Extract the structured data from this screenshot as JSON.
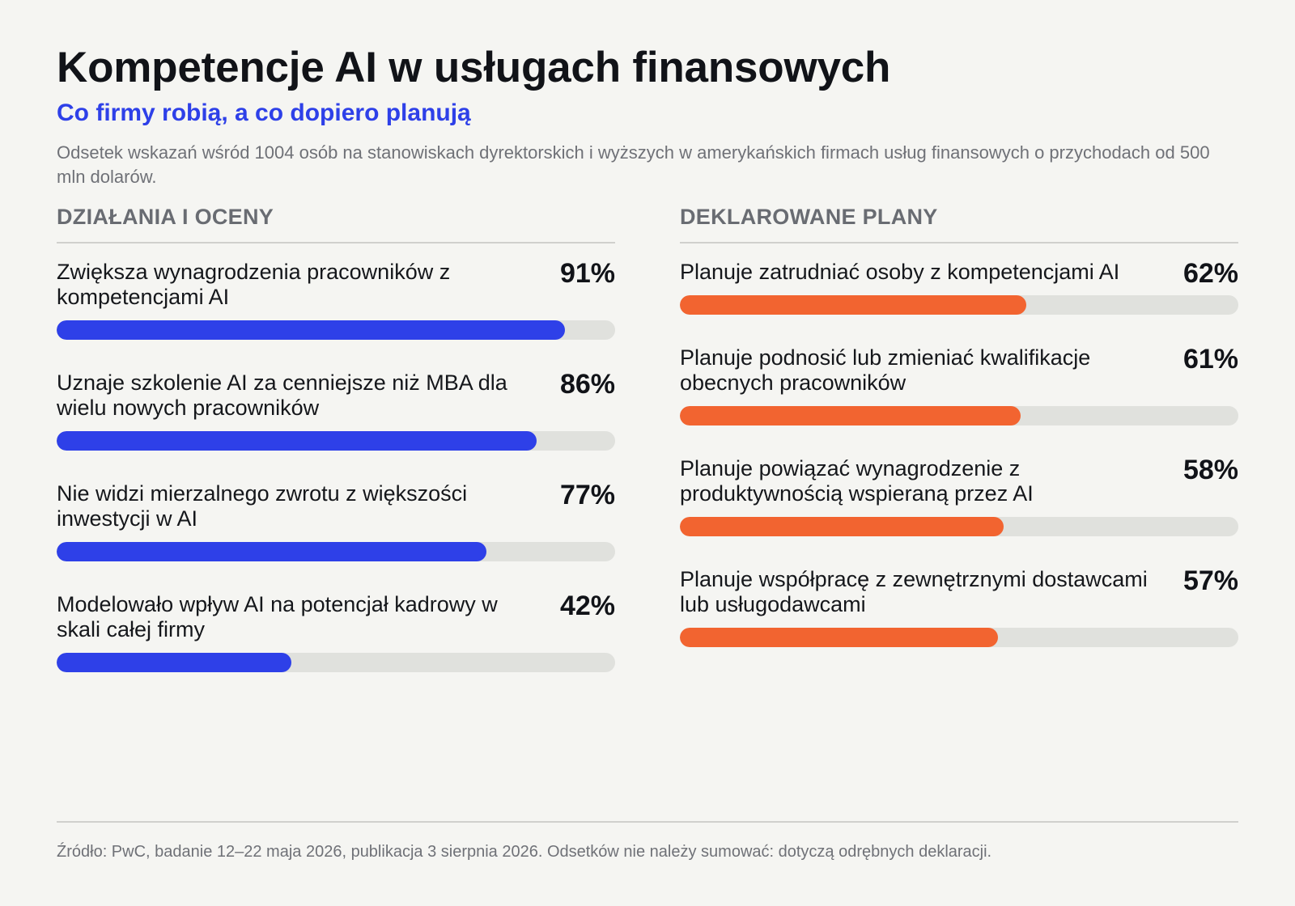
{
  "header": {
    "title": "Kompetencje AI w usługach finansowych",
    "subtitle": "Co firmy robią, a co dopiero planują",
    "description": "Odsetek wskazań wśród 1004 osób na stanowiskach dyrektorskich i wyższych w amerykańskich firmach usług finansowych o przychodach od 500 mln dolarów."
  },
  "colors": {
    "left_bar": "#2e40e8",
    "right_bar": "#f26430",
    "track": "#e0e1dd",
    "subtitle": "#2e40e8"
  },
  "chart_data": [
    {
      "type": "bar",
      "orientation": "horizontal",
      "title": "DZIAŁANIA I OCENY",
      "unit": "%",
      "xlim": [
        0,
        100
      ],
      "grid": false,
      "color": "#2e40e8",
      "categories": [
        "Zwiększa wynagrodzenia pracowników z kompetencjami AI",
        "Uznaje szkolenie AI za cenniejsze niż MBA dla wielu nowych pracowników",
        "Nie widzi mierzalnego zwrotu z większości inwestycji w AI",
        "Modelowało wpływ AI na potencjał kadrowy w skali całej firmy"
      ],
      "values": [
        91,
        86,
        77,
        42
      ],
      "labels": [
        "91%",
        "86%",
        "77%",
        "42%"
      ]
    },
    {
      "type": "bar",
      "orientation": "horizontal",
      "title": "DEKLAROWANE PLANY",
      "unit": "%",
      "xlim": [
        0,
        100
      ],
      "grid": false,
      "color": "#f26430",
      "categories": [
        "Planuje zatrudniać osoby z kompetencjami AI",
        "Planuje podnosić lub zmieniać kwalifikacje obecnych pracowników",
        "Planuje powiązać wynagrodzenie z produktywnością wspieraną przez AI",
        "Planuje współpracę z zewnętrznymi dostawcami lub usługodawcami"
      ],
      "values": [
        62,
        61,
        58,
        57
      ],
      "labels": [
        "62%",
        "61%",
        "58%",
        "57%"
      ]
    }
  ],
  "footer": {
    "source": "Źródło: PwC, badanie 12–22 maja 2026, publikacja 3 sierpnia 2026. Odsetków nie należy sumować: dotyczą odrębnych deklaracji."
  }
}
